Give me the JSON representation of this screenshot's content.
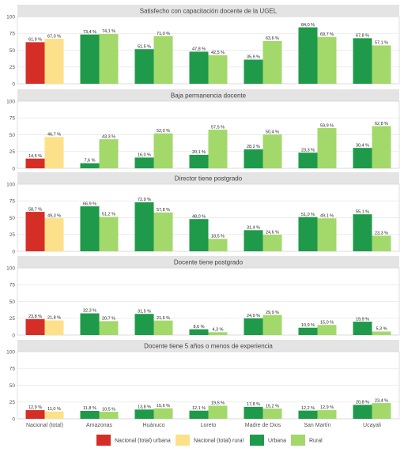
{
  "chart_data": {
    "type": "bar",
    "categories": [
      "Nacional (total)",
      "Amazonas",
      "Huánuco",
      "Loreto",
      "Madre de Dios",
      "San Martín",
      "Ucayali"
    ],
    "legend": [
      {
        "name": "Nacional (total) urbana",
        "color": "#d42e27"
      },
      {
        "name": "Nacional (total) rural",
        "color": "#fde08a"
      },
      {
        "name": "Urbana",
        "color": "#1e9a4a"
      },
      {
        "name": "Rural",
        "color": "#a3d86b"
      }
    ],
    "legend_position": "bottom",
    "ylim": [
      0,
      100
    ],
    "yticks": [
      "0",
      "25",
      "50",
      "75",
      "100"
    ],
    "grid": true,
    "panels": [
      {
        "title": "Satisfecho con capacitación docente de la UGEL",
        "urban": [
          61.9,
          73.4,
          51.5,
          47.8,
          35.9,
          84.0,
          67.8
        ],
        "rural": [
          67.0,
          74.1,
          71.0,
          42.5,
          63.6,
          69.7,
          57.1
        ],
        "urban_labels": [
          "61,9 %",
          "73,4 %",
          "51,5 %",
          "47,8 %",
          "35,9 %",
          "84,0 %",
          "67,8 %"
        ],
        "rural_labels": [
          "67,0 %",
          "74,1 %",
          "71,0 %",
          "42,5 %",
          "63,6 %",
          "69,7 %",
          "57,1 %"
        ]
      },
      {
        "title": "Baja permanencia docente",
        "urban": [
          14.5,
          7.6,
          16.0,
          20.1,
          28.2,
          23.3,
          30.4
        ],
        "rural": [
          46.7,
          43.3,
          52.0,
          57.5,
          50.4,
          59.9,
          62.8
        ],
        "urban_labels": [
          "14,5 %",
          "7,6 %",
          "16,0 %",
          "20,1 %",
          "28,2 %",
          "23,3 %",
          "30,4 %"
        ],
        "rural_labels": [
          "46,7 %",
          "43,3 %",
          "52,0 %",
          "57,5 %",
          "50,4 %",
          "59,9 %",
          "62,8 %"
        ]
      },
      {
        "title": "Director tiene postgrado",
        "urban": [
          58.7,
          66.9,
          72.9,
          48.0,
          31.4,
          51.0,
          55.1
        ],
        "rural": [
          49.3,
          51.2,
          57.8,
          18.5,
          24.6,
          49.1,
          23.3
        ],
        "urban_labels": [
          "58,7 %",
          "66,9 %",
          "72,9 %",
          "48,0 %",
          "31,4 %",
          "51,0 %",
          "55,1 %"
        ],
        "rural_labels": [
          "49,3 %",
          "51,2 %",
          "57,8 %",
          "18,5 %",
          "24,6 %",
          "49,1 %",
          "23,3 %"
        ]
      },
      {
        "title": "Docente tiene postgrado",
        "urban": [
          23.8,
          32.3,
          31.5,
          8.6,
          24.9,
          10.9,
          19.9
        ],
        "rural": [
          21.8,
          20.7,
          21.6,
          4.3,
          29.9,
          15.0,
          5.3
        ],
        "urban_labels": [
          "23,8 %",
          "32,3 %",
          "31,5 %",
          "8,6 %",
          "24,9 %",
          "10,9 %",
          "19,9 %"
        ],
        "rural_labels": [
          "21,8 %",
          "20,7 %",
          "21,6 %",
          "4,3 %",
          "29,9 %",
          "15,0 %",
          "5,3 %"
        ]
      },
      {
        "title": "Docente tiene 5 años o menos de experiencia",
        "urban": [
          12.9,
          11.8,
          13.8,
          12.1,
          17.8,
          12.2,
          20.8
        ],
        "rural": [
          11.0,
          10.5,
          15.6,
          19.5,
          15.2,
          12.9,
          23.4
        ],
        "urban_labels": [
          "12,9 %",
          "11,8 %",
          "13,8 %",
          "12,1 %",
          "17,8 %",
          "12,2 %",
          "20,8 %"
        ],
        "rural_labels": [
          "11,0 %",
          "10,5 %",
          "15,6 %",
          "19,5 %",
          "15,2 %",
          "12,9 %",
          "23,4 %"
        ]
      }
    ]
  }
}
